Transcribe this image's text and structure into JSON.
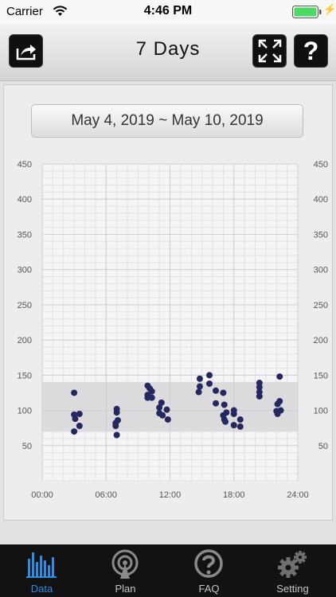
{
  "status": {
    "carrier": "Carrier",
    "time": "4:46 PM"
  },
  "header": {
    "title": "7 Days",
    "share_icon": "share-icon",
    "expand_icon": "expand-icon",
    "help_label": "?"
  },
  "date_range": "May 4, 2019 ~ May 10, 2019",
  "tabs": [
    {
      "label": "Data",
      "icon": "bar-chart-icon",
      "active": true
    },
    {
      "label": "Plan",
      "icon": "broadcast-icon",
      "active": false
    },
    {
      "label": "FAQ",
      "icon": "question-icon",
      "active": false
    },
    {
      "label": "Setting",
      "icon": "gears-icon",
      "active": false
    }
  ],
  "colors": {
    "accent": "#2a8ee6",
    "point": "#25285e",
    "band": "#d9d9db"
  },
  "chart_data": {
    "type": "scatter",
    "title": "",
    "xlabel": "",
    "ylabel": "",
    "x_tick_labels": [
      "00:00",
      "06:00",
      "12:00",
      "18:00",
      "24:00"
    ],
    "x_ticks": [
      0,
      6,
      12,
      18,
      24
    ],
    "y_ticks": [
      50,
      100,
      150,
      200,
      250,
      300,
      350,
      400,
      450
    ],
    "xlim": [
      0,
      24
    ],
    "ylim": [
      0,
      450
    ],
    "target_band": [
      70,
      140
    ],
    "grid": true,
    "points": [
      {
        "x": 3.0,
        "y": 125
      },
      {
        "x": 3.0,
        "y": 94
      },
      {
        "x": 3.1,
        "y": 88
      },
      {
        "x": 3.5,
        "y": 95
      },
      {
        "x": 3.5,
        "y": 78
      },
      {
        "x": 3.0,
        "y": 70
      },
      {
        "x": 7.0,
        "y": 102
      },
      {
        "x": 7.0,
        "y": 97
      },
      {
        "x": 7.1,
        "y": 86
      },
      {
        "x": 6.9,
        "y": 82
      },
      {
        "x": 6.9,
        "y": 78
      },
      {
        "x": 7.0,
        "y": 65
      },
      {
        "x": 9.9,
        "y": 135
      },
      {
        "x": 10.1,
        "y": 131
      },
      {
        "x": 10.3,
        "y": 127
      },
      {
        "x": 9.9,
        "y": 122
      },
      {
        "x": 10.3,
        "y": 118
      },
      {
        "x": 9.9,
        "y": 118
      },
      {
        "x": 11.2,
        "y": 111
      },
      {
        "x": 11.0,
        "y": 104
      },
      {
        "x": 11.7,
        "y": 101
      },
      {
        "x": 11.0,
        "y": 96
      },
      {
        "x": 11.3,
        "y": 93
      },
      {
        "x": 11.8,
        "y": 87
      },
      {
        "x": 14.8,
        "y": 145
      },
      {
        "x": 14.8,
        "y": 134
      },
      {
        "x": 14.7,
        "y": 126
      },
      {
        "x": 15.7,
        "y": 150
      },
      {
        "x": 15.7,
        "y": 138
      },
      {
        "x": 16.3,
        "y": 128
      },
      {
        "x": 17.0,
        "y": 125
      },
      {
        "x": 16.3,
        "y": 110
      },
      {
        "x": 17.1,
        "y": 108
      },
      {
        "x": 17.3,
        "y": 97
      },
      {
        "x": 17.0,
        "y": 93
      },
      {
        "x": 17.1,
        "y": 87
      },
      {
        "x": 17.2,
        "y": 84
      },
      {
        "x": 18.0,
        "y": 100
      },
      {
        "x": 18.0,
        "y": 95
      },
      {
        "x": 18.6,
        "y": 87
      },
      {
        "x": 18.0,
        "y": 79
      },
      {
        "x": 18.6,
        "y": 77
      },
      {
        "x": 20.4,
        "y": 139
      },
      {
        "x": 20.4,
        "y": 133
      },
      {
        "x": 20.4,
        "y": 126
      },
      {
        "x": 20.4,
        "y": 120
      },
      {
        "x": 22.3,
        "y": 148
      },
      {
        "x": 22.3,
        "y": 113
      },
      {
        "x": 22.1,
        "y": 109
      },
      {
        "x": 22.4,
        "y": 100
      },
      {
        "x": 22.0,
        "y": 99
      },
      {
        "x": 22.1,
        "y": 95
      }
    ]
  }
}
